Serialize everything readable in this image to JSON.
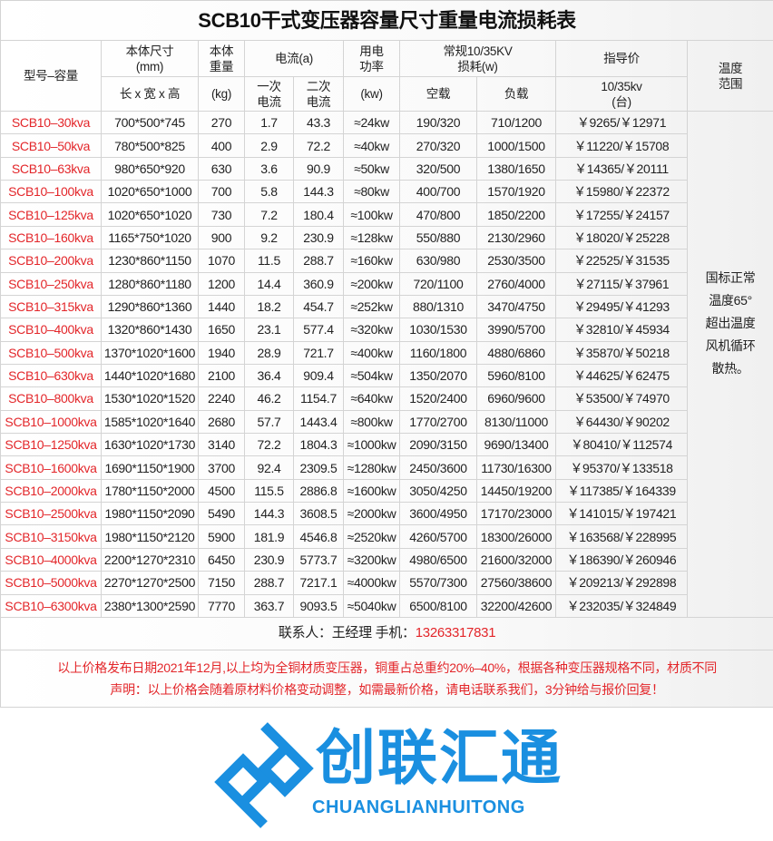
{
  "title": "SCB10干式变压器容量尺寸重量电流损耗表",
  "headers": {
    "model": "型号–容量",
    "dims_top": "本体尺寸",
    "dims_unit": "(mm)",
    "dims_bottom": "长 x 宽 x 高",
    "weight_top": "本体",
    "weight_top2": "重量",
    "weight_unit": "(kg)",
    "current": "电流(a)",
    "current1_a": "一次",
    "current1_b": "电流",
    "current2_a": "二次",
    "current2_b": "电流",
    "power_a": "用电",
    "power_b": "功率",
    "power_unit": "(kw)",
    "loss_a": "常规10/35KV",
    "loss_b": "损耗(w)",
    "noload": "空载",
    "load": "负载",
    "price": "指导价",
    "price_sub_a": "10/35kv",
    "price_sub_b": "(台)",
    "temp_a": "温度",
    "temp_b": "范围"
  },
  "temperature_note": [
    "国标正常",
    "温度65°",
    "超出温度",
    "风机循环",
    "散热。"
  ],
  "rows": [
    [
      "SCB10–30kva",
      "700*500*745",
      "270",
      "1.7",
      "43.3",
      "≈24kw",
      "190/320",
      "710/1200",
      "￥9265/￥12971"
    ],
    [
      "SCB10–50kva",
      "780*500*825",
      "400",
      "2.9",
      "72.2",
      "≈40kw",
      "270/320",
      "1000/1500",
      "￥11220/￥15708"
    ],
    [
      "SCB10–63kva",
      "980*650*920",
      "630",
      "3.6",
      "90.9",
      "≈50kw",
      "320/500",
      "1380/1650",
      "￥14365/￥20111"
    ],
    [
      "SCB10–100kva",
      "1020*650*1000",
      "700",
      "5.8",
      "144.3",
      "≈80kw",
      "400/700",
      "1570/1920",
      "￥15980/￥22372"
    ],
    [
      "SCB10–125kva",
      "1020*650*1020",
      "730",
      "7.2",
      "180.4",
      "≈100kw",
      "470/800",
      "1850/2200",
      "￥17255/￥24157"
    ],
    [
      "SCB10–160kva",
      "1165*750*1020",
      "900",
      "9.2",
      "230.9",
      "≈128kw",
      "550/880",
      "2130/2960",
      "￥18020/￥25228"
    ],
    [
      "SCB10–200kva",
      "1230*860*1150",
      "1070",
      "11.5",
      "288.7",
      "≈160kw",
      "630/980",
      "2530/3500",
      "￥22525/￥31535"
    ],
    [
      "SCB10–250kva",
      "1280*860*1180",
      "1200",
      "14.4",
      "360.9",
      "≈200kw",
      "720/1100",
      "2760/4000",
      "￥27115/￥37961"
    ],
    [
      "SCB10–315kva",
      "1290*860*1360",
      "1440",
      "18.2",
      "454.7",
      "≈252kw",
      "880/1310",
      "3470/4750",
      "￥29495/￥41293"
    ],
    [
      "SCB10–400kva",
      "1320*860*1430",
      "1650",
      "23.1",
      "577.4",
      "≈320kw",
      "1030/1530",
      "3990/5700",
      "￥32810/￥45934"
    ],
    [
      "SCB10–500kva",
      "1370*1020*1600",
      "1940",
      "28.9",
      "721.7",
      "≈400kw",
      "1160/1800",
      "4880/6860",
      "￥35870/￥50218"
    ],
    [
      "SCB10–630kva",
      "1440*1020*1680",
      "2100",
      "36.4",
      "909.4",
      "≈504kw",
      "1350/2070",
      "5960/8100",
      "￥44625/￥62475"
    ],
    [
      "SCB10–800kva",
      "1530*1020*1520",
      "2240",
      "46.2",
      "1154.7",
      "≈640kw",
      "1520/2400",
      "6960/9600",
      "￥53500/￥74970"
    ],
    [
      "SCB10–1000kva",
      "1585*1020*1640",
      "2680",
      "57.7",
      "1443.4",
      "≈800kw",
      "1770/2700",
      "8130/11000",
      "￥64430/￥90202"
    ],
    [
      "SCB10–1250kva",
      "1630*1020*1730",
      "3140",
      "72.2",
      "1804.3",
      "≈1000kw",
      "2090/3150",
      "9690/13400",
      "￥80410/￥112574"
    ],
    [
      "SCB10–1600kva",
      "1690*1150*1900",
      "3700",
      "92.4",
      "2309.5",
      "≈1280kw",
      "2450/3600",
      "11730/16300",
      "￥95370/￥133518"
    ],
    [
      "SCB10–2000kva",
      "1780*1150*2000",
      "4500",
      "115.5",
      "2886.8",
      "≈1600kw",
      "3050/4250",
      "14450/19200",
      "￥117385/￥164339"
    ],
    [
      "SCB10–2500kva",
      "1980*1150*2090",
      "5490",
      "144.3",
      "3608.5",
      "≈2000kw",
      "3600/4950",
      "17170/23000",
      "￥141015/￥197421"
    ],
    [
      "SCB10–3150kva",
      "1980*1150*2120",
      "5900",
      "181.9",
      "4546.8",
      "≈2520kw",
      "4260/5700",
      "18300/26000",
      "￥163568/￥228995"
    ],
    [
      "SCB10–4000kva",
      "2200*1270*2310",
      "6450",
      "230.9",
      "5773.7",
      "≈3200kw",
      "4980/6500",
      "21600/32000",
      "￥186390/￥260946"
    ],
    [
      "SCB10–5000kva",
      "2270*1270*2500",
      "7150",
      "288.7",
      "7217.1",
      "≈4000kw",
      "5570/7300",
      "27560/38600",
      "￥209213/￥292898"
    ],
    [
      "SCB10–6300kva",
      "2380*1300*2590",
      "7770",
      "363.7",
      "9093.5",
      "≈5040kw",
      "6500/8100",
      "32200/42600",
      "￥232035/￥324849"
    ]
  ],
  "contact": {
    "label": "联系人：王经理  手机：",
    "phone": "13263317831"
  },
  "notes": [
    "以上价格发布日期2021年12月,以上均为全铜材质变压器，铜重占总重约20%–40%，根据各种变压器规格不同，材质不同",
    "声明：以上价格会随着原材料价格变动调整，如需最新价格，请电话联系我们，3分钟给与报价回复！"
  ],
  "watermark": {
    "cn": "创联汇通",
    "en": "CHUANGLIANHUITONG"
  },
  "colors": {
    "model_text": "#e3262a",
    "watermark": "#1a8fe0"
  }
}
